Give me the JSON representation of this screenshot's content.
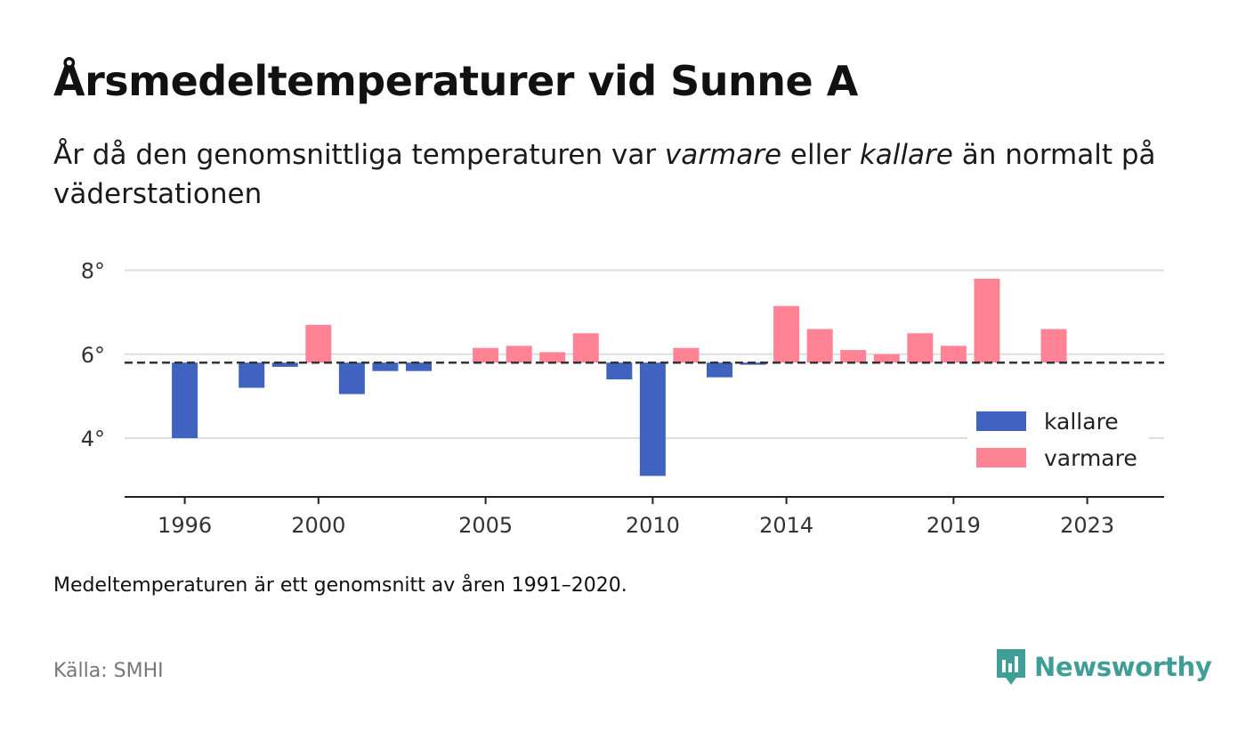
{
  "header": {
    "title": "Årsmedeltemperaturer vid Sunne A",
    "subtitle_part1": "År då den genomsnittliga temperaturen var ",
    "subtitle_warm": "varmare",
    "subtitle_part2": " eller ",
    "subtitle_cold": "kallare",
    "subtitle_part3": " än normalt på väderstationen"
  },
  "footer": {
    "note": "Medeltemperaturen är ett genomsnitt av åren 1991–2020.",
    "source": "Källa: SMHI",
    "brand": "Newsworthy"
  },
  "colors": {
    "cold": "#4063bf",
    "warm": "#ff8395",
    "brand": "#3f9e96"
  },
  "chart_data": {
    "type": "bar",
    "title": "Årsmedeltemperaturer vid Sunne A",
    "baseline": 5.8,
    "baseline_style": "dashed",
    "ylim": [
      2.6,
      8.5
    ],
    "yticks": [
      4,
      6,
      8
    ],
    "ytick_labels": [
      "4°",
      "6°",
      "8°"
    ],
    "xlim": [
      1994.2,
      2025.3
    ],
    "xticks": [
      1996,
      2000,
      2005,
      2010,
      2014,
      2019,
      2023
    ],
    "xtick_labels": [
      "1996",
      "2000",
      "2005",
      "2010",
      "2014",
      "2019",
      "2023"
    ],
    "grid": true,
    "legend_position": "bottom-right",
    "legend": [
      {
        "label": "kallare",
        "color": "#4063bf"
      },
      {
        "label": "varmare",
        "color": "#ff8395"
      }
    ],
    "series": [
      {
        "name": "kallare",
        "x": [
          1996,
          1998,
          1999,
          2001,
          2002,
          2003,
          2009,
          2010,
          2012,
          2013
        ],
        "values": [
          4.0,
          5.2,
          5.7,
          5.05,
          5.6,
          5.6,
          5.4,
          3.1,
          5.45,
          5.75
        ]
      },
      {
        "name": "varmare",
        "x": [
          2000,
          2005,
          2006,
          2007,
          2008,
          2011,
          2014,
          2015,
          2016,
          2017,
          2018,
          2019,
          2020,
          2022
        ],
        "values": [
          6.7,
          6.15,
          6.2,
          6.05,
          6.5,
          6.15,
          7.15,
          6.6,
          6.1,
          6.0,
          6.5,
          6.2,
          7.8,
          6.6
        ]
      }
    ]
  }
}
